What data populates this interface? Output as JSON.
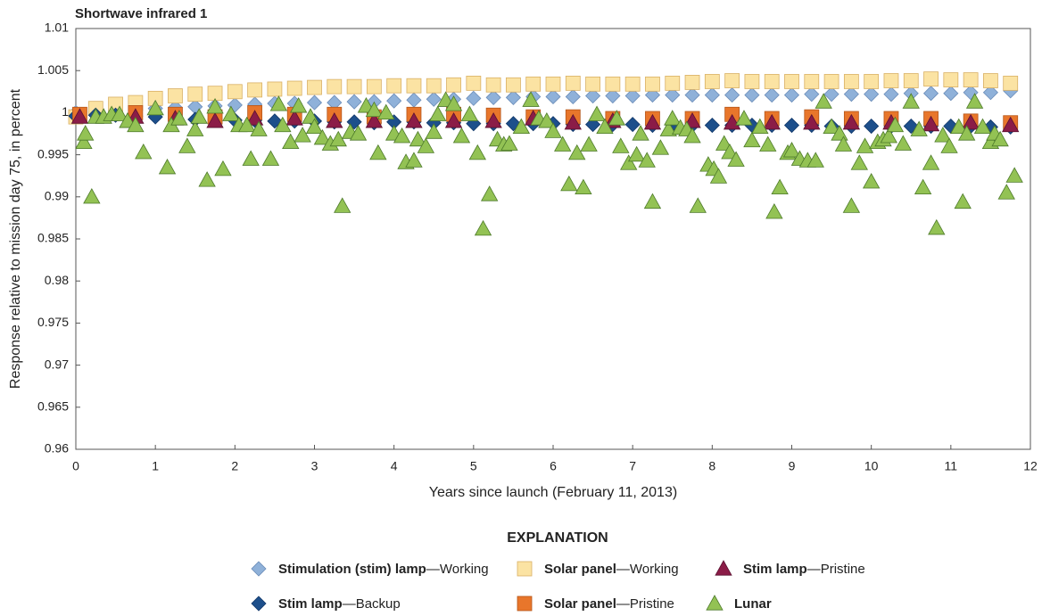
{
  "chart_data": {
    "type": "scatter",
    "title": "Shortwave infrared 1",
    "xlabel": "Years since launch (February 11, 2013)",
    "ylabel": "Response relative to mission day 75, in percent",
    "legend_title": "EXPLANATION",
    "xlim": [
      0,
      12
    ],
    "xticks": [
      0,
      1,
      2,
      3,
      4,
      5,
      6,
      7,
      8,
      9,
      10,
      11,
      12
    ],
    "ylim": [
      0.96,
      1.01
    ],
    "yticks": [
      1.01,
      1.005,
      1,
      0.995,
      0.99,
      0.985,
      0.98,
      0.975,
      0.97,
      0.965,
      0.96
    ],
    "series": [
      {
        "name": "Stimulation (stim) lamp—Working",
        "marker": "diamond",
        "color": "#8fb1d9",
        "edgecolor": "#6a8cb8",
        "x": [
          0,
          0.25,
          0.5,
          0.75,
          1,
          1.25,
          1.5,
          1.75,
          2,
          2.25,
          2.5,
          2.75,
          3,
          3.25,
          3.5,
          3.75,
          4,
          4.25,
          4.5,
          4.75,
          5,
          5.25,
          5.5,
          5.75,
          6,
          6.25,
          6.5,
          6.75,
          7,
          7.25,
          7.5,
          7.75,
          8,
          8.25,
          8.5,
          8.75,
          9,
          9.25,
          9.5,
          9.75,
          10,
          10.25,
          10.5,
          10.75,
          11,
          11.25,
          11.5,
          11.75
        ],
        "values": [
          1.0,
          1.0001,
          1.0002,
          1.0003,
          1.0005,
          1.0006,
          1.0007,
          1.0008,
          1.0009,
          1.001,
          1.0011,
          1.0011,
          1.0012,
          1.0012,
          1.0013,
          1.0013,
          1.0014,
          1.0015,
          1.0016,
          1.0016,
          1.0017,
          1.0018,
          1.0018,
          1.0019,
          1.0019,
          1.0019,
          1.002,
          1.002,
          1.002,
          1.0021,
          1.0021,
          1.0021,
          1.0021,
          1.0021,
          1.0021,
          1.0021,
          1.0021,
          1.0022,
          1.0022,
          1.0022,
          1.0022,
          1.0022,
          1.0023,
          1.0023,
          1.0023,
          1.0024,
          1.0024,
          1.0026
        ]
      },
      {
        "name": "Solar panel—Working",
        "marker": "square",
        "color": "#fbe3a3",
        "edgecolor": "#d9b064",
        "x": [
          0,
          0.25,
          0.5,
          0.75,
          1,
          1.25,
          1.5,
          1.75,
          2,
          2.25,
          2.5,
          2.75,
          3,
          3.25,
          3.5,
          3.75,
          4,
          4.25,
          4.5,
          4.75,
          5,
          5.25,
          5.5,
          5.75,
          6,
          6.25,
          6.5,
          6.75,
          7,
          7.25,
          7.5,
          7.75,
          8,
          8.25,
          8.5,
          8.75,
          9,
          9.25,
          9.5,
          9.75,
          10,
          10.25,
          10.5,
          10.75,
          11,
          11.25,
          11.5,
          11.75
        ],
        "values": [
          0.9995,
          1.0005,
          1.001,
          1.0012,
          1.0017,
          1.002,
          1.0022,
          1.0023,
          1.0025,
          1.0027,
          1.0028,
          1.0029,
          1.003,
          1.0031,
          1.0031,
          1.0031,
          1.0032,
          1.0032,
          1.0032,
          1.0033,
          1.0035,
          1.0033,
          1.0033,
          1.0034,
          1.0034,
          1.0035,
          1.0034,
          1.0034,
          1.0034,
          1.0034,
          1.0035,
          1.0036,
          1.0037,
          1.0038,
          1.0037,
          1.0037,
          1.0037,
          1.0037,
          1.0037,
          1.0037,
          1.0037,
          1.0038,
          1.0038,
          1.004,
          1.0039,
          1.0039,
          1.0038,
          1.0035
        ]
      },
      {
        "name": "Stim lamp—Backup",
        "marker": "diamond",
        "color": "#1d4f8b",
        "edgecolor": "#12386a",
        "x": [
          0,
          0.25,
          0.5,
          0.75,
          1,
          1.25,
          1.5,
          1.75,
          2,
          2.25,
          2.5,
          2.75,
          3,
          3.25,
          3.5,
          3.75,
          4,
          4.25,
          4.5,
          4.75,
          5,
          5.25,
          5.5,
          5.75,
          6,
          6.25,
          6.5,
          6.75,
          7,
          7.25,
          7.5,
          7.75,
          8,
          8.25,
          8.5,
          8.75,
          9,
          9.25,
          9.5,
          9.75,
          10,
          10.25,
          10.5,
          10.75,
          11,
          11.25,
          11.5,
          11.75
        ],
        "values": [
          0.9996,
          0.9997,
          0.9997,
          0.9996,
          0.9995,
          0.9993,
          0.9992,
          0.9992,
          0.9991,
          0.9991,
          0.999,
          0.999,
          0.999,
          0.9989,
          0.9989,
          0.9988,
          0.9989,
          0.9989,
          0.9988,
          0.9988,
          0.9987,
          0.9987,
          0.9987,
          0.9987,
          0.9987,
          0.9986,
          0.9986,
          0.9986,
          0.9986,
          0.9985,
          0.9986,
          0.9985,
          0.9985,
          0.9985,
          0.9985,
          0.9985,
          0.9985,
          0.9985,
          0.9984,
          0.9984,
          0.9984,
          0.9984,
          0.9984,
          0.9984,
          0.9984,
          0.9984,
          0.9983,
          0.9983
        ]
      },
      {
        "name": "Solar panel—Pristine",
        "marker": "square",
        "color": "#e8762b",
        "edgecolor": "#b5561a",
        "x": [
          0.05,
          0.75,
          1.25,
          1.75,
          2.25,
          2.75,
          3.25,
          3.75,
          4.25,
          4.75,
          5.25,
          5.75,
          6.25,
          6.75,
          7.25,
          7.75,
          8.25,
          8.75,
          9.25,
          9.75,
          10.25,
          10.75,
          11.25,
          11.75
        ],
        "values": [
          0.9998,
          1.0,
          0.9998,
          0.9995,
          1.0,
          0.9998,
          0.9998,
          0.9995,
          0.9998,
          0.9998,
          0.9997,
          0.9995,
          0.9995,
          0.9993,
          0.9993,
          0.9993,
          0.9998,
          0.9993,
          0.9995,
          0.9993,
          0.9993,
          0.9993,
          0.999,
          0.9988
        ]
      },
      {
        "name": "Stim lamp—Pristine",
        "marker": "triangle",
        "color": "#8b1c47",
        "edgecolor": "#5a1030",
        "x": [
          0.05,
          0.75,
          1.25,
          1.75,
          2.25,
          2.75,
          3.25,
          3.75,
          4.25,
          4.75,
          5.25,
          5.75,
          6.25,
          6.75,
          7.25,
          7.75,
          8.25,
          8.75,
          9.25,
          9.75,
          10.25,
          10.75,
          11.25,
          11.75
        ],
        "values": [
          0.9995,
          0.9995,
          0.9993,
          0.999,
          0.9993,
          0.9993,
          0.999,
          0.999,
          0.999,
          0.999,
          0.999,
          0.9993,
          0.9988,
          0.999,
          0.9988,
          0.999,
          0.9988,
          0.9988,
          0.9988,
          0.9988,
          0.9988,
          0.9986,
          0.9988,
          0.9985
        ]
      },
      {
        "name": "Lunar",
        "marker": "triangle",
        "color": "#93c254",
        "edgecolor": "#4d7a2a",
        "x": [
          0.1,
          0.12,
          0.2,
          0.25,
          0.35,
          0.45,
          0.55,
          0.65,
          0.75,
          0.85,
          1.0,
          1.15,
          1.2,
          1.3,
          1.4,
          1.5,
          1.55,
          1.65,
          1.75,
          1.85,
          1.95,
          2.05,
          2.15,
          2.2,
          2.3,
          2.45,
          2.55,
          2.6,
          2.7,
          2.8,
          2.85,
          2.95,
          3.0,
          3.1,
          3.2,
          3.3,
          3.35,
          3.45,
          3.55,
          3.65,
          3.75,
          3.8,
          3.9,
          4.0,
          4.1,
          4.15,
          4.25,
          4.3,
          4.4,
          4.5,
          4.55,
          4.65,
          4.75,
          4.85,
          4.95,
          5.05,
          5.12,
          5.2,
          5.3,
          5.38,
          5.45,
          5.6,
          5.72,
          5.82,
          5.92,
          6.0,
          6.12,
          6.2,
          6.3,
          6.38,
          6.45,
          6.55,
          6.65,
          6.8,
          6.85,
          6.95,
          7.05,
          7.1,
          7.18,
          7.25,
          7.35,
          7.45,
          7.5,
          7.6,
          7.68,
          7.75,
          7.82,
          7.95,
          8.02,
          8.08,
          8.15,
          8.22,
          8.3,
          8.4,
          8.5,
          8.6,
          8.7,
          8.78,
          8.85,
          8.95,
          9.0,
          9.1,
          9.2,
          9.3,
          9.4,
          9.5,
          9.6,
          9.65,
          9.75,
          9.85,
          9.92,
          10.0,
          10.08,
          10.15,
          10.22,
          10.3,
          10.4,
          10.5,
          10.6,
          10.65,
          10.75,
          10.82,
          10.9,
          10.98,
          11.1,
          11.15,
          11.2,
          11.3,
          11.4,
          11.5,
          11.55,
          11.62,
          11.7,
          11.8
        ],
        "values": [
          0.9965,
          0.9975,
          0.99,
          0.9995,
          0.9995,
          0.9998,
          0.9998,
          0.999,
          0.9985,
          0.9953,
          1.0005,
          0.9935,
          0.9985,
          0.9993,
          0.996,
          0.998,
          0.9995,
          0.992,
          1.0007,
          0.9933,
          0.9998,
          0.9985,
          0.9985,
          0.9945,
          0.998,
          0.9945,
          1.001,
          0.9985,
          0.9965,
          1.0008,
          0.9973,
          0.9995,
          0.9983,
          0.997,
          0.9963,
          0.9968,
          0.9889,
          0.9977,
          0.9975,
          1.0008,
          1.0003,
          0.9952,
          1.0,
          0.9975,
          0.9972,
          0.9941,
          0.9943,
          0.9968,
          0.996,
          0.9977,
          0.9998,
          1.0015,
          1.001,
          0.9972,
          0.9998,
          0.9952,
          0.9862,
          0.9903,
          0.9968,
          0.9962,
          0.9963,
          0.9983,
          1.0015,
          0.9993,
          0.999,
          0.9978,
          0.9962,
          0.9915,
          0.9952,
          0.9911,
          0.9962,
          0.9998,
          0.9983,
          0.9993,
          0.996,
          0.994,
          0.995,
          0.9975,
          0.9943,
          0.9894,
          0.9958,
          0.998,
          0.9993,
          0.9982,
          0.998,
          0.9972,
          0.9889,
          0.9938,
          0.9933,
          0.9924,
          0.9963,
          0.9953,
          0.9944,
          0.9993,
          0.9967,
          0.9983,
          0.9962,
          0.9882,
          0.9911,
          0.9952,
          0.9955,
          0.9945,
          0.9943,
          0.9943,
          1.0013,
          0.9983,
          0.9975,
          0.9962,
          0.9889,
          0.994,
          0.996,
          0.9918,
          0.9965,
          0.9968,
          0.9972,
          0.9985,
          0.9963,
          1.0013,
          0.998,
          0.9911,
          0.994,
          0.9863,
          0.9973,
          0.996,
          0.9983,
          0.9894,
          0.9975,
          1.0013,
          0.9983,
          0.9965,
          0.9975,
          0.9968,
          0.9905,
          0.9925
        ]
      }
    ]
  }
}
